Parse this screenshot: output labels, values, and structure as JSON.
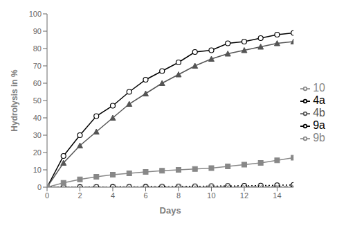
{
  "chart_data": {
    "type": "line",
    "xlabel": "Days",
    "ylabel": "Hydrolysis in %",
    "x": [
      0,
      1,
      2,
      3,
      4,
      5,
      6,
      7,
      8,
      9,
      10,
      11,
      12,
      13,
      14,
      15
    ],
    "xlim": [
      0,
      15
    ],
    "ylim": [
      0,
      100
    ],
    "xticks": [
      0,
      2,
      4,
      6,
      8,
      10,
      12,
      14
    ],
    "yticks": [
      0,
      10,
      20,
      30,
      40,
      50,
      60,
      70,
      80,
      90,
      100
    ],
    "grid": false,
    "legend": "right",
    "series": [
      {
        "name": "4a",
        "color": "#000000",
        "marker": "circle",
        "line_style": "solid",
        "values": [
          0,
          18,
          30,
          41,
          47,
          55,
          62,
          67,
          72,
          78,
          79,
          83,
          84,
          86,
          88,
          89
        ]
      },
      {
        "name": "4b",
        "color": "#555555",
        "marker": "triangle",
        "line_style": "solid",
        "values": [
          0,
          14,
          24,
          32,
          40,
          48,
          54,
          60,
          65,
          70,
          74,
          77,
          79,
          81,
          83,
          84
        ]
      },
      {
        "name": "9a",
        "color": "#000000",
        "marker": "circle",
        "line_style": "dotted",
        "values": [
          0,
          0.05,
          0.05,
          0.1,
          0.15,
          0.2,
          0.25,
          0.3,
          0.4,
          0.5,
          0.6,
          0.7,
          0.8,
          0.9,
          1.1,
          1.3
        ]
      },
      {
        "name": "9b",
        "color": "#888888",
        "marker": "x",
        "line_style": "dashed",
        "values": [
          0,
          0.02,
          0.02,
          0.03,
          0.05,
          0.07,
          0.08,
          0.1,
          0.12,
          0.15,
          0.18,
          0.2,
          0.25,
          0.28,
          0.32,
          0.35
        ]
      },
      {
        "name": "10",
        "color": "#888888",
        "marker": "square",
        "line_style": "solid",
        "values": [
          0,
          2.5,
          4.5,
          6.0,
          7.2,
          8.0,
          8.8,
          9.5,
          10.0,
          10.5,
          11.0,
          12.0,
          13.0,
          14.0,
          15.5,
          17.0
        ]
      }
    ]
  }
}
